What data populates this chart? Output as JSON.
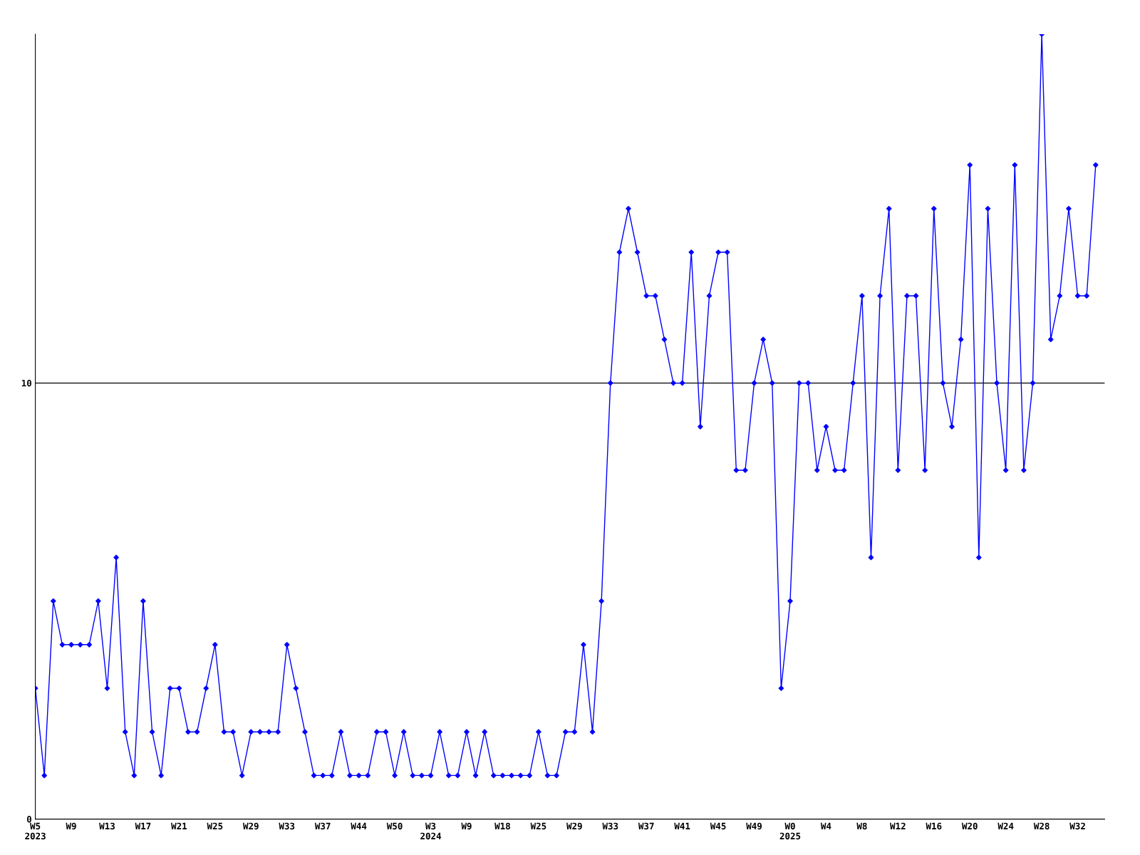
{
  "chart_data": {
    "type": "line",
    "categories": [
      "W5\n2023",
      null,
      null,
      null,
      "W9",
      null,
      null,
      null,
      "W13",
      null,
      null,
      null,
      "W17",
      null,
      null,
      null,
      "W21",
      null,
      null,
      null,
      "W25",
      null,
      null,
      null,
      "W29",
      null,
      null,
      null,
      "W33",
      null,
      null,
      null,
      "W37",
      null,
      null,
      null,
      "W44",
      null,
      null,
      null,
      "W50",
      null,
      null,
      null,
      "W3\n2024",
      null,
      null,
      null,
      "W9",
      null,
      null,
      null,
      "W18",
      null,
      null,
      null,
      "W25",
      null,
      null,
      null,
      "W29",
      null,
      null,
      null,
      "W33",
      null,
      null,
      null,
      "W37",
      null,
      null,
      null,
      "W41",
      null,
      null,
      null,
      "W45",
      null,
      null,
      null,
      "W49",
      null,
      null,
      null,
      "W0\n2025",
      null,
      null,
      null,
      "W4",
      null,
      null,
      null,
      "W8",
      null,
      null,
      null,
      "W12",
      null,
      null,
      null,
      "W16",
      null,
      null,
      null,
      "W20",
      null,
      null,
      null,
      "W24",
      null,
      null,
      null,
      "W28",
      null,
      null,
      null,
      "W32",
      null,
      null
    ],
    "series": [
      {
        "color": "#0000ff",
        "values": [
          3,
          1,
          5,
          4,
          4,
          4,
          4,
          5,
          3,
          6,
          2,
          1,
          5,
          2,
          1,
          3,
          3,
          2,
          2,
          3,
          4,
          2,
          2,
          1,
          2,
          2,
          2,
          2,
          4,
          3,
          2,
          1,
          1,
          1,
          2,
          1,
          1,
          1,
          2,
          2,
          1,
          2,
          1,
          1,
          1,
          2,
          1,
          1,
          2,
          1,
          2,
          1,
          1,
          1,
          1,
          1,
          2,
          1,
          1,
          2,
          2,
          4,
          2,
          5,
          10,
          13,
          14,
          13,
          12,
          12,
          11,
          10,
          10,
          13,
          9,
          12,
          13,
          13,
          8,
          8,
          10,
          11,
          10,
          3,
          5,
          10,
          10,
          8,
          9,
          8,
          8,
          10,
          12,
          6,
          12,
          14,
          8,
          12,
          12,
          8,
          14,
          10,
          9,
          11,
          15,
          6,
          14,
          10,
          8,
          15,
          8,
          10,
          18,
          11,
          12,
          14,
          12,
          12,
          15
        ]
      }
    ],
    "ylim": [
      0,
      18
    ],
    "yticks": [
      0,
      10
    ],
    "grid": "y",
    "marker": "diamond",
    "line_style": "solid"
  }
}
